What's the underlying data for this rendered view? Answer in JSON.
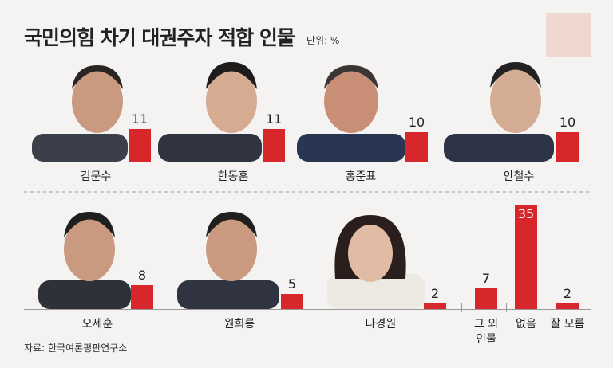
{
  "chart_data": {
    "type": "bar",
    "title": "국민의힘 차기 대권주자 적합 인물",
    "unit": "단위: %",
    "source": "자료: 한국여론평판연구소",
    "categories": [
      "김문수",
      "한동훈",
      "홍준표",
      "안철수",
      "오세훈",
      "원희룡",
      "나경원",
      "그 외 인물",
      "없음",
      "잘 모름"
    ],
    "values": [
      11,
      11,
      10,
      10,
      8,
      5,
      2,
      7,
      35,
      2
    ],
    "color": "#d8272a",
    "ylim": [
      0,
      35
    ]
  }
}
